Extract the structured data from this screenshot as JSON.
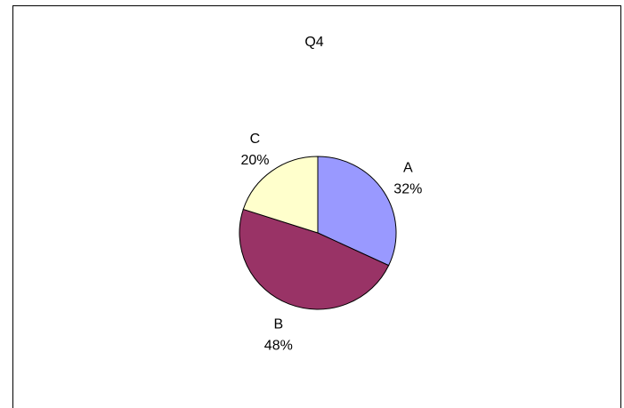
{
  "chart_data": {
    "type": "pie",
    "title": "Q4",
    "categories": [
      "A",
      "B",
      "C"
    ],
    "values": [
      32,
      48,
      20
    ],
    "value_labels": [
      "32%",
      "48%",
      "20%"
    ],
    "colors": [
      "#9999ff",
      "#993366",
      "#ffffcc"
    ],
    "legend": "none"
  }
}
